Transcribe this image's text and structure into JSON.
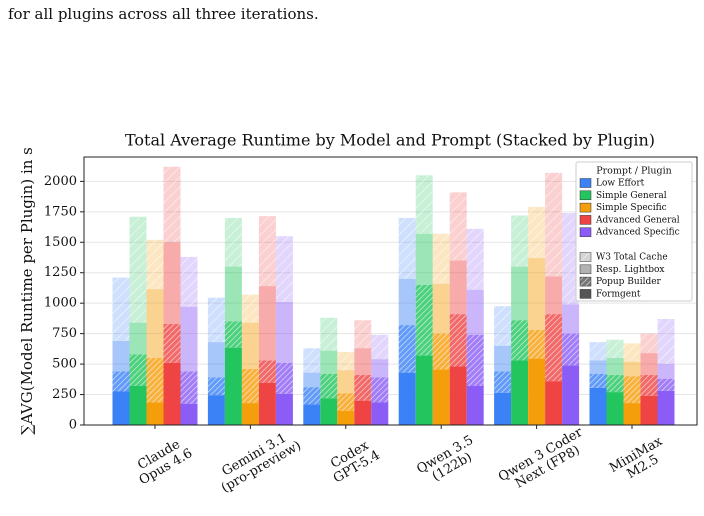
{
  "caption": "for all plugins across all three iterations.",
  "chart_data": {
    "type": "grouped-stacked-bar",
    "title": "Total Average Runtime by Model and Prompt (Stacked by Plugin)",
    "y_label": "∑AVG(Model Runtime per Plugin) in s",
    "categories": [
      [
        "Claude",
        "Opus 4.6"
      ],
      [
        "Gemini 3.1",
        "(pro-preview)"
      ],
      [
        "Codex",
        "GPT-5.4"
      ],
      [
        "Qwen 3.5",
        "(122b)"
      ],
      [
        "Qwen 3 Coder",
        "Next (FP8)"
      ],
      [
        "MiniMax",
        "M2.5"
      ]
    ],
    "legend_title": "Prompt / Plugin",
    "stacks": [
      "Formgent",
      "Popup Builder",
      "Resp. Lightbox",
      "W3 Total Cache"
    ],
    "series": [
      {
        "name": "Low Effort",
        "color": "#3b82f6",
        "values": [
          [
            275,
            165,
            250,
            520
          ],
          [
            245,
            145,
            290,
            365
          ],
          [
            170,
            140,
            120,
            200
          ],
          [
            430,
            390,
            380,
            500
          ],
          [
            265,
            175,
            210,
            325
          ],
          [
            305,
            115,
            110,
            150
          ]
        ]
      },
      {
        "name": "Simple General",
        "color": "#22c55e",
        "values": [
          [
            320,
            260,
            260,
            870
          ],
          [
            635,
            215,
            450,
            400
          ],
          [
            220,
            200,
            190,
            270
          ],
          [
            570,
            580,
            420,
            480
          ],
          [
            530,
            330,
            440,
            420
          ],
          [
            270,
            140,
            140,
            150
          ]
        ]
      },
      {
        "name": "Simple Specific",
        "color": "#f59e0b",
        "values": [
          [
            185,
            365,
            565,
            405
          ],
          [
            180,
            280,
            380,
            230
          ],
          [
            115,
            145,
            190,
            150
          ],
          [
            455,
            295,
            410,
            410
          ],
          [
            545,
            235,
            590,
            420
          ],
          [
            180,
            220,
            120,
            150
          ]
        ]
      },
      {
        "name": "Advanced General",
        "color": "#ef4444",
        "values": [
          [
            510,
            320,
            670,
            620
          ],
          [
            345,
            185,
            610,
            575
          ],
          [
            200,
            210,
            220,
            230
          ],
          [
            480,
            430,
            440,
            560
          ],
          [
            360,
            550,
            310,
            850
          ],
          [
            240,
            170,
            180,
            160
          ]
        ]
      },
      {
        "name": "Advanced Specific",
        "color": "#8b5cf6",
        "values": [
          [
            175,
            265,
            530,
            410
          ],
          [
            255,
            255,
            500,
            540
          ],
          [
            185,
            205,
            150,
            200
          ],
          [
            320,
            420,
            370,
            500
          ],
          [
            490,
            260,
            240,
            750
          ],
          [
            280,
            100,
            120,
            370
          ]
        ]
      }
    ],
    "ylim": [
      0,
      2200
    ],
    "yticks": [
      0,
      250,
      500,
      750,
      1000,
      1250,
      1500,
      1750,
      2000
    ],
    "grid": true
  }
}
